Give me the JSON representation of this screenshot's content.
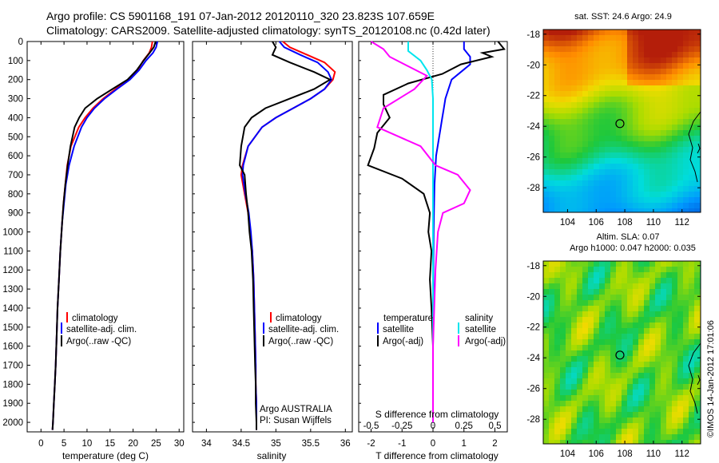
{
  "title": {
    "line1": "Argo profile: CS 5901168_191 07-Jan-2012 20120110_320 23.823S 107.659E",
    "line2": "Climatology: CARS2009. Satellite-adjusted climatology: synTS_20120108.nc (0.42d later)"
  },
  "colors": {
    "climatology": "#ff0000",
    "satellite": "#0000ff",
    "argo": "#000000",
    "sal_satellite": "#00e5ee",
    "sal_argo": "#ff00ff"
  },
  "depth_ticks": [
    0,
    100,
    200,
    300,
    400,
    500,
    600,
    700,
    800,
    900,
    1000,
    1100,
    1200,
    1300,
    1400,
    1500,
    1600,
    1700,
    1800,
    1900,
    2000
  ],
  "panels": {
    "temperature": {
      "xlabel": "temperature (deg C)",
      "xticks": [
        "0",
        "5",
        "10",
        "15",
        "20",
        "25",
        "30"
      ],
      "legend": [
        "climatology",
        "satellite-adj. clim.",
        "Argo(..raw -QC)"
      ]
    },
    "salinity": {
      "xlabel": "salinity",
      "xticks": [
        "34",
        "34.5",
        "35",
        "35.5",
        "36"
      ],
      "legend": [
        "climatology",
        "satellite-adj. clim.",
        "Argo(..raw -QC)"
      ],
      "note1": "Argo AUSTRALIA",
      "note2": "PI: Susan Wijffels"
    },
    "difference": {
      "xlabel": "T difference from climatology",
      "xticks": [
        "-2",
        "-1",
        "0",
        "1",
        "2"
      ],
      "top_label": "S difference from climatology",
      "top_ticks": [
        "-0.5",
        "-0.25",
        "0",
        "0.25",
        "0.5"
      ],
      "legend_t_title": "temperature",
      "legend_s_title": "salinity",
      "legend_t": [
        "satellite",
        "Argo(-adj)"
      ],
      "legend_s": [
        "satellite",
        "Argo(-adj)"
      ]
    }
  },
  "maps": {
    "sst": {
      "title": "sat. SST: 24.6  Argo: 24.9",
      "yticks": [
        "-18",
        "-20",
        "-22",
        "-24",
        "-26",
        "-28"
      ],
      "xticks": [
        "104",
        "106",
        "108",
        "110",
        "112"
      ],
      "marker_lon": 107.659,
      "marker_lat": -23.823
    },
    "sla": {
      "title1": "Altim. SLA: 0.07",
      "title2": "Argo h1000: 0.047 h2000: 0.035",
      "yticks": [
        "-18",
        "-20",
        "-22",
        "-24",
        "-26",
        "-28"
      ],
      "xticks": [
        "104",
        "106",
        "108",
        "110",
        "112"
      ],
      "marker_lon": 107.659,
      "marker_lat": -23.823
    }
  },
  "side_stamp": "©IMOS 14-Jan-2012 17:01:06",
  "chart_data": [
    {
      "type": "line",
      "panel": "temperature",
      "xlabel": "temperature (deg C)",
      "xlim": [
        -3,
        31
      ],
      "ylim": [
        2050,
        0
      ],
      "series": [
        {
          "name": "climatology",
          "x": [
            24.2,
            24,
            23.5,
            22.2,
            21,
            19,
            16.2,
            13.5,
            11.3,
            9.6,
            8.2,
            6.5,
            5.7,
            5.3,
            4.9,
            4.6,
            4.2,
            3.9,
            3.6,
            3.4,
            3.2,
            3.0,
            2.8,
            2.6,
            2.5
          ],
          "y": [
            0,
            30,
            60,
            100,
            150,
            200,
            250,
            300,
            350,
            400,
            450,
            550,
            650,
            750,
            850,
            950,
            1100,
            1250,
            1400,
            1550,
            1700,
            1800,
            1900,
            2000,
            2040
          ]
        },
        {
          "name": "satellite-adj. clim.",
          "x": [
            25.3,
            25,
            24.3,
            22.8,
            21.3,
            19.3,
            16.5,
            13.8,
            11.6,
            10.0,
            8.8,
            7.2,
            6.1,
            5.4,
            5.0,
            4.6,
            4.2,
            3.9,
            3.6,
            3.4,
            3.2,
            3.0,
            2.8,
            2.6,
            2.5
          ],
          "y": [
            0,
            30,
            60,
            100,
            150,
            200,
            250,
            300,
            350,
            400,
            450,
            550,
            650,
            750,
            850,
            950,
            1100,
            1250,
            1400,
            1550,
            1700,
            1800,
            1900,
            2000,
            2040
          ]
        },
        {
          "name": "Argo(..raw -QC)",
          "x": [
            24.9,
            24.5,
            23.6,
            22.3,
            20.8,
            18.8,
            15.5,
            12.2,
            9.6,
            8.3,
            7.3,
            6.4,
            5.8,
            5.3,
            4.9,
            4.6,
            4.2,
            3.9,
            3.6,
            3.4,
            3.2,
            3.0,
            2.8,
            2.6,
            2.5
          ],
          "y": [
            0,
            30,
            60,
            100,
            150,
            200,
            250,
            300,
            350,
            400,
            450,
            550,
            650,
            750,
            850,
            950,
            1100,
            1250,
            1400,
            1550,
            1700,
            1800,
            1900,
            2000,
            2040
          ]
        }
      ]
    },
    {
      "type": "line",
      "panel": "salinity",
      "xlabel": "salinity",
      "xlim": [
        33.8,
        36.1
      ],
      "ylim": [
        2050,
        0
      ],
      "series": [
        {
          "name": "climatology",
          "x": [
            35.1,
            35.2,
            35.45,
            35.7,
            35.85,
            35.82,
            35.7,
            35.5,
            35.25,
            35.0,
            34.8,
            34.6,
            34.52,
            34.5,
            34.55,
            34.6,
            34.63,
            34.66,
            34.68,
            34.69,
            34.7,
            34.71,
            34.71,
            34.72,
            34.72,
            34.72
          ],
          "y": [
            0,
            30,
            70,
            110,
            160,
            200,
            250,
            300,
            350,
            400,
            450,
            550,
            650,
            700,
            800,
            900,
            1000,
            1100,
            1250,
            1400,
            1550,
            1700,
            1800,
            1900,
            2000,
            2040
          ]
        },
        {
          "name": "satellite-adj. clim.",
          "x": [
            35.05,
            35.12,
            35.35,
            35.6,
            35.75,
            35.8,
            35.7,
            35.5,
            35.25,
            35.0,
            34.8,
            34.6,
            34.53,
            34.52,
            34.56,
            34.61,
            34.64,
            34.66,
            34.68,
            34.69,
            34.7,
            34.71,
            34.71,
            34.72,
            34.72,
            34.72
          ],
          "y": [
            0,
            30,
            70,
            110,
            160,
            200,
            250,
            300,
            350,
            400,
            450,
            550,
            650,
            700,
            800,
            900,
            1000,
            1100,
            1250,
            1400,
            1550,
            1700,
            1800,
            1900,
            2000,
            2040
          ]
        },
        {
          "name": "Argo(..raw -QC)",
          "x": [
            34.95,
            35.0,
            34.95,
            35.2,
            35.55,
            35.78,
            35.55,
            35.2,
            34.85,
            34.65,
            34.55,
            34.5,
            34.48,
            34.55,
            34.57,
            34.6,
            34.62,
            34.65,
            34.67,
            34.68,
            34.69,
            34.7,
            34.71,
            34.71,
            34.72,
            34.72
          ],
          "y": [
            0,
            30,
            70,
            110,
            160,
            200,
            250,
            300,
            350,
            400,
            450,
            550,
            650,
            700,
            800,
            900,
            1000,
            1100,
            1250,
            1400,
            1550,
            1700,
            1800,
            1900,
            2000,
            2040
          ]
        }
      ]
    },
    {
      "type": "line",
      "panel": "difference",
      "xlabel": "T difference from climatology",
      "xlim": [
        -2.4,
        2.4
      ],
      "ylim": [
        2050,
        0
      ],
      "series": [
        {
          "name": "satellite",
          "quantity": "temperature",
          "x": [
            1.0,
            1.0,
            1.2,
            1.2,
            0.9,
            0.6,
            0.5,
            0.4,
            0.35,
            0.3,
            0.25,
            0.1,
            0.05,
            0.03,
            0.02,
            0.01,
            0.01,
            0.0,
            0.0,
            0.0,
            0.0
          ],
          "y": [
            0,
            40,
            80,
            120,
            160,
            200,
            250,
            300,
            350,
            400,
            450,
            600,
            750,
            900,
            1000,
            1200,
            1400,
            1600,
            1800,
            1900,
            2000
          ]
        },
        {
          "name": "Argo(-adj)",
          "quantity": "temperature",
          "x": [
            2.1,
            2.3,
            1.6,
            1.9,
            0.9,
            0.3,
            -0.8,
            -1.6,
            -1.6,
            -1.4,
            -1.8,
            -1.9,
            -2.1,
            -1.0,
            -0.3,
            -0.1,
            -0.15,
            -0.05,
            -0.1,
            -0.05,
            0.0,
            0.0,
            0.0,
            0.0
          ],
          "y": [
            0,
            40,
            60,
            80,
            120,
            170,
            220,
            280,
            330,
            400,
            480,
            560,
            650,
            720,
            800,
            900,
            1000,
            1100,
            1250,
            1400,
            1600,
            1800,
            1900,
            2000
          ]
        },
        {
          "name": "satellite",
          "quantity": "salinity",
          "x": [
            -0.2,
            -0.2,
            -0.1,
            -0.05,
            -0.01,
            0.0,
            0.0,
            0.0,
            0.0,
            0.0,
            0.0
          ],
          "y": [
            0,
            50,
            100,
            150,
            200,
            300,
            500,
            800,
            1200,
            1600,
            2000
          ]
        },
        {
          "name": "Argo(-adj)",
          "quantity": "salinity",
          "x": [
            -0.5,
            -0.4,
            -0.35,
            -0.2,
            -0.05,
            -0.15,
            -0.4,
            -0.45,
            -0.1,
            0.02,
            0.2,
            0.3,
            0.25,
            0.08,
            0.04,
            0.02,
            0.0,
            0.0
          ],
          "y": [
            0,
            40,
            80,
            130,
            180,
            250,
            350,
            450,
            550,
            650,
            700,
            780,
            850,
            900,
            1000,
            1200,
            1600,
            2000
          ]
        }
      ]
    }
  ]
}
